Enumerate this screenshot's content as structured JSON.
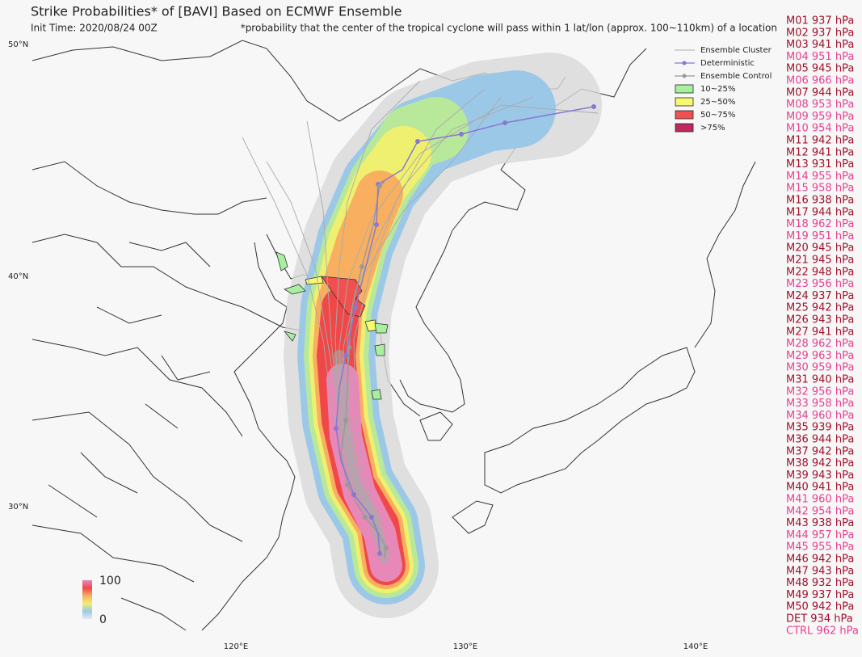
{
  "header": {
    "title": "Strike Probabilities* of [BAVI] Based on ECMWF Ensemble",
    "init_time": "Init Time: 2020/08/24 00Z",
    "note": "*probability that the center of the tropical cyclone will pass within 1 lat/lon (approx. 100~110km) of a location"
  },
  "map": {
    "lat_labels": [
      "50°N",
      "40°N",
      "30°N"
    ],
    "lon_labels": [
      "120°E",
      "130°E",
      "140°E"
    ]
  },
  "legend": {
    "lines": [
      {
        "label": "Ensemble Cluster",
        "color": "#bbbbbb"
      },
      {
        "label": "Deterministic",
        "color": "#8878d0"
      },
      {
        "label": "Ensemble Control",
        "color": "#999999"
      }
    ],
    "boxes": [
      {
        "label": "10~25%",
        "color": "#a8f0a0"
      },
      {
        "label": "25~50%",
        "color": "#f8f870"
      },
      {
        "label": "50~75%",
        "color": "#f05050"
      },
      {
        "label": ">75%",
        "color": "#c02860"
      }
    ]
  },
  "colorbar": {
    "max": "100",
    "min": "0"
  },
  "members": [
    {
      "label": "M01 937 hPa",
      "color": "#a0102a"
    },
    {
      "label": "M02 937 hPa",
      "color": "#a0102a"
    },
    {
      "label": "M03 941 hPa",
      "color": "#a0102a"
    },
    {
      "label": "M04 951 hPa",
      "color": "#e8408f"
    },
    {
      "label": "M05 945 hPa",
      "color": "#a0102a"
    },
    {
      "label": "M06 966 hPa",
      "color": "#e8408f"
    },
    {
      "label": "M07 944 hPa",
      "color": "#a0102a"
    },
    {
      "label": "M08 953 hPa",
      "color": "#e8408f"
    },
    {
      "label": "M09 959 hPa",
      "color": "#e8408f"
    },
    {
      "label": "M10 954 hPa",
      "color": "#e8408f"
    },
    {
      "label": "M11 942 hPa",
      "color": "#a0102a"
    },
    {
      "label": "M12 941 hPa",
      "color": "#a0102a"
    },
    {
      "label": "M13 931 hPa",
      "color": "#a0102a"
    },
    {
      "label": "M14 955 hPa",
      "color": "#e8408f"
    },
    {
      "label": "M15 958 hPa",
      "color": "#e8408f"
    },
    {
      "label": "M16 938 hPa",
      "color": "#a0102a"
    },
    {
      "label": "M17 944 hPa",
      "color": "#a0102a"
    },
    {
      "label": "M18 962 hPa",
      "color": "#e8408f"
    },
    {
      "label": "M19 951 hPa",
      "color": "#e8408f"
    },
    {
      "label": "M20 945 hPa",
      "color": "#a0102a"
    },
    {
      "label": "M21 945 hPa",
      "color": "#a0102a"
    },
    {
      "label": "M22 948 hPa",
      "color": "#a0102a"
    },
    {
      "label": "M23 956 hPa",
      "color": "#e8408f"
    },
    {
      "label": "M24 937 hPa",
      "color": "#a0102a"
    },
    {
      "label": "M25 942 hPa",
      "color": "#a0102a"
    },
    {
      "label": "M26 943 hPa",
      "color": "#a0102a"
    },
    {
      "label": "M27 941 hPa",
      "color": "#a0102a"
    },
    {
      "label": "M28 962 hPa",
      "color": "#e8408f"
    },
    {
      "label": "M29 963 hPa",
      "color": "#e8408f"
    },
    {
      "label": "M30 959 hPa",
      "color": "#e8408f"
    },
    {
      "label": "M31 940 hPa",
      "color": "#a0102a"
    },
    {
      "label": "M32 956 hPa",
      "color": "#e8408f"
    },
    {
      "label": "M33 958 hPa",
      "color": "#e8408f"
    },
    {
      "label": "M34 960 hPa",
      "color": "#e8408f"
    },
    {
      "label": "M35 939 hPa",
      "color": "#a0102a"
    },
    {
      "label": "M36 944 hPa",
      "color": "#a0102a"
    },
    {
      "label": "M37 942 hPa",
      "color": "#a0102a"
    },
    {
      "label": "M38 942 hPa",
      "color": "#a0102a"
    },
    {
      "label": "M39 943 hPa",
      "color": "#a0102a"
    },
    {
      "label": "M40 941 hPa",
      "color": "#a0102a"
    },
    {
      "label": "M41 960 hPa",
      "color": "#e8408f"
    },
    {
      "label": "M42 954 hPa",
      "color": "#e8408f"
    },
    {
      "label": "M43 938 hPa",
      "color": "#a0102a"
    },
    {
      "label": "M44 957 hPa",
      "color": "#e8408f"
    },
    {
      "label": "M45 955 hPa",
      "color": "#e8408f"
    },
    {
      "label": "M46 942 hPa",
      "color": "#a0102a"
    },
    {
      "label": "M47 943 hPa",
      "color": "#a0102a"
    },
    {
      "label": "M48 932 hPa",
      "color": "#a0102a"
    },
    {
      "label": "M49 937 hPa",
      "color": "#a0102a"
    },
    {
      "label": "M50 942 hPa",
      "color": "#a0102a"
    },
    {
      "label": "DET 934 hPa",
      "color": "#a0102a"
    },
    {
      "label": "CTRL 962 hPa",
      "color": "#e8408f"
    }
  ]
}
